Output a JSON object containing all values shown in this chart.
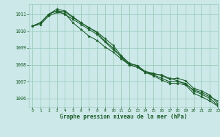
{
  "title": "Graphe pression niveau de la mer (hPa)",
  "background_color": "#cce8e8",
  "grid_color": "#99ccbb",
  "line_color": "#1a5c28",
  "marker_color": "#1a5c28",
  "xlim": [
    -0.5,
    23
  ],
  "ylim": [
    1005.5,
    1011.6
  ],
  "yticks": [
    1006,
    1007,
    1008,
    1009,
    1010,
    1011
  ],
  "xticks": [
    0,
    1,
    2,
    3,
    4,
    5,
    6,
    7,
    8,
    9,
    10,
    11,
    12,
    13,
    14,
    15,
    16,
    17,
    18,
    19,
    20,
    21,
    22,
    23
  ],
  "series": [
    [
      1010.3,
      1010.5,
      1011.0,
      1011.2,
      1011.0,
      1010.7,
      1010.4,
      1010.1,
      1009.8,
      1009.35,
      1008.9,
      1008.5,
      1008.05,
      1007.95,
      1007.55,
      1007.45,
      1007.4,
      1007.2,
      1007.05,
      1006.85,
      1006.5,
      1006.35,
      1006.1,
      1005.85
    ],
    [
      1010.3,
      1010.5,
      1011.0,
      1011.2,
      1011.15,
      1010.8,
      1010.5,
      1010.2,
      1009.95,
      1009.55,
      1009.15,
      1008.55,
      1008.1,
      1007.95,
      1007.6,
      1007.5,
      1007.35,
      1007.15,
      1007.2,
      1007.05,
      1006.6,
      1006.45,
      1006.2,
      1005.7
    ],
    [
      1010.3,
      1010.5,
      1011.0,
      1011.3,
      1011.2,
      1010.85,
      1010.5,
      1010.2,
      1009.9,
      1009.4,
      1009.0,
      1008.45,
      1008.0,
      1007.85,
      1007.55,
      1007.4,
      1007.2,
      1007.0,
      1007.0,
      1006.9,
      1006.45,
      1006.25,
      1006.0,
      1005.6
    ],
    [
      1010.3,
      1010.4,
      1010.9,
      1011.1,
      1011.05,
      1010.5,
      1010.1,
      1009.7,
      1009.45,
      1009.05,
      1008.75,
      1008.35,
      1008.0,
      1007.85,
      1007.55,
      1007.35,
      1007.1,
      1006.9,
      1006.9,
      1006.8,
      1006.3,
      1006.1,
      1005.85,
      1005.55
    ]
  ]
}
